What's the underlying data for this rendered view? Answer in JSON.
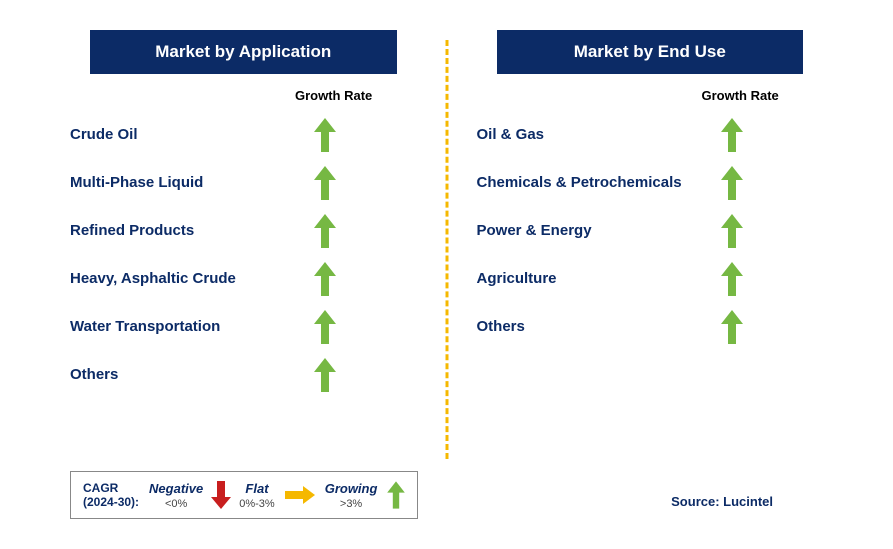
{
  "colors": {
    "header_bg": "#0c2b66",
    "header_text": "#ffffff",
    "label_text": "#0c2b66",
    "growing_arrow": "#76b843",
    "flat_arrow": "#f5b800",
    "negative_arrow": "#c81e1e",
    "divider": "#f5b800"
  },
  "left": {
    "title": "Market by Application",
    "growth_label": "Growth Rate",
    "rows": [
      {
        "label": "Crude Oil",
        "trend": "growing"
      },
      {
        "label": "Multi-Phase Liquid",
        "trend": "growing"
      },
      {
        "label": "Refined Products",
        "trend": "growing"
      },
      {
        "label": "Heavy, Asphaltic Crude",
        "trend": "growing"
      },
      {
        "label": "Water Transportation",
        "trend": "growing"
      },
      {
        "label": "Others",
        "trend": "growing"
      }
    ]
  },
  "right": {
    "title": "Market by End Use",
    "growth_label": "Growth Rate",
    "rows": [
      {
        "label": "Oil & Gas",
        "trend": "growing"
      },
      {
        "label": "Chemicals & Petrochemicals",
        "trend": "growing"
      },
      {
        "label": "Power & Energy",
        "trend": "growing"
      },
      {
        "label": "Agriculture",
        "trend": "growing"
      },
      {
        "label": "Others",
        "trend": "growing"
      }
    ]
  },
  "legend": {
    "cagr_line1": "CAGR",
    "cagr_line2": "(2024-30):",
    "negative": {
      "label": "Negative",
      "range": "<0%"
    },
    "flat": {
      "label": "Flat",
      "range": "0%-3%"
    },
    "growing": {
      "label": "Growing",
      "range": ">3%"
    }
  },
  "source": "Source: Lucintel"
}
